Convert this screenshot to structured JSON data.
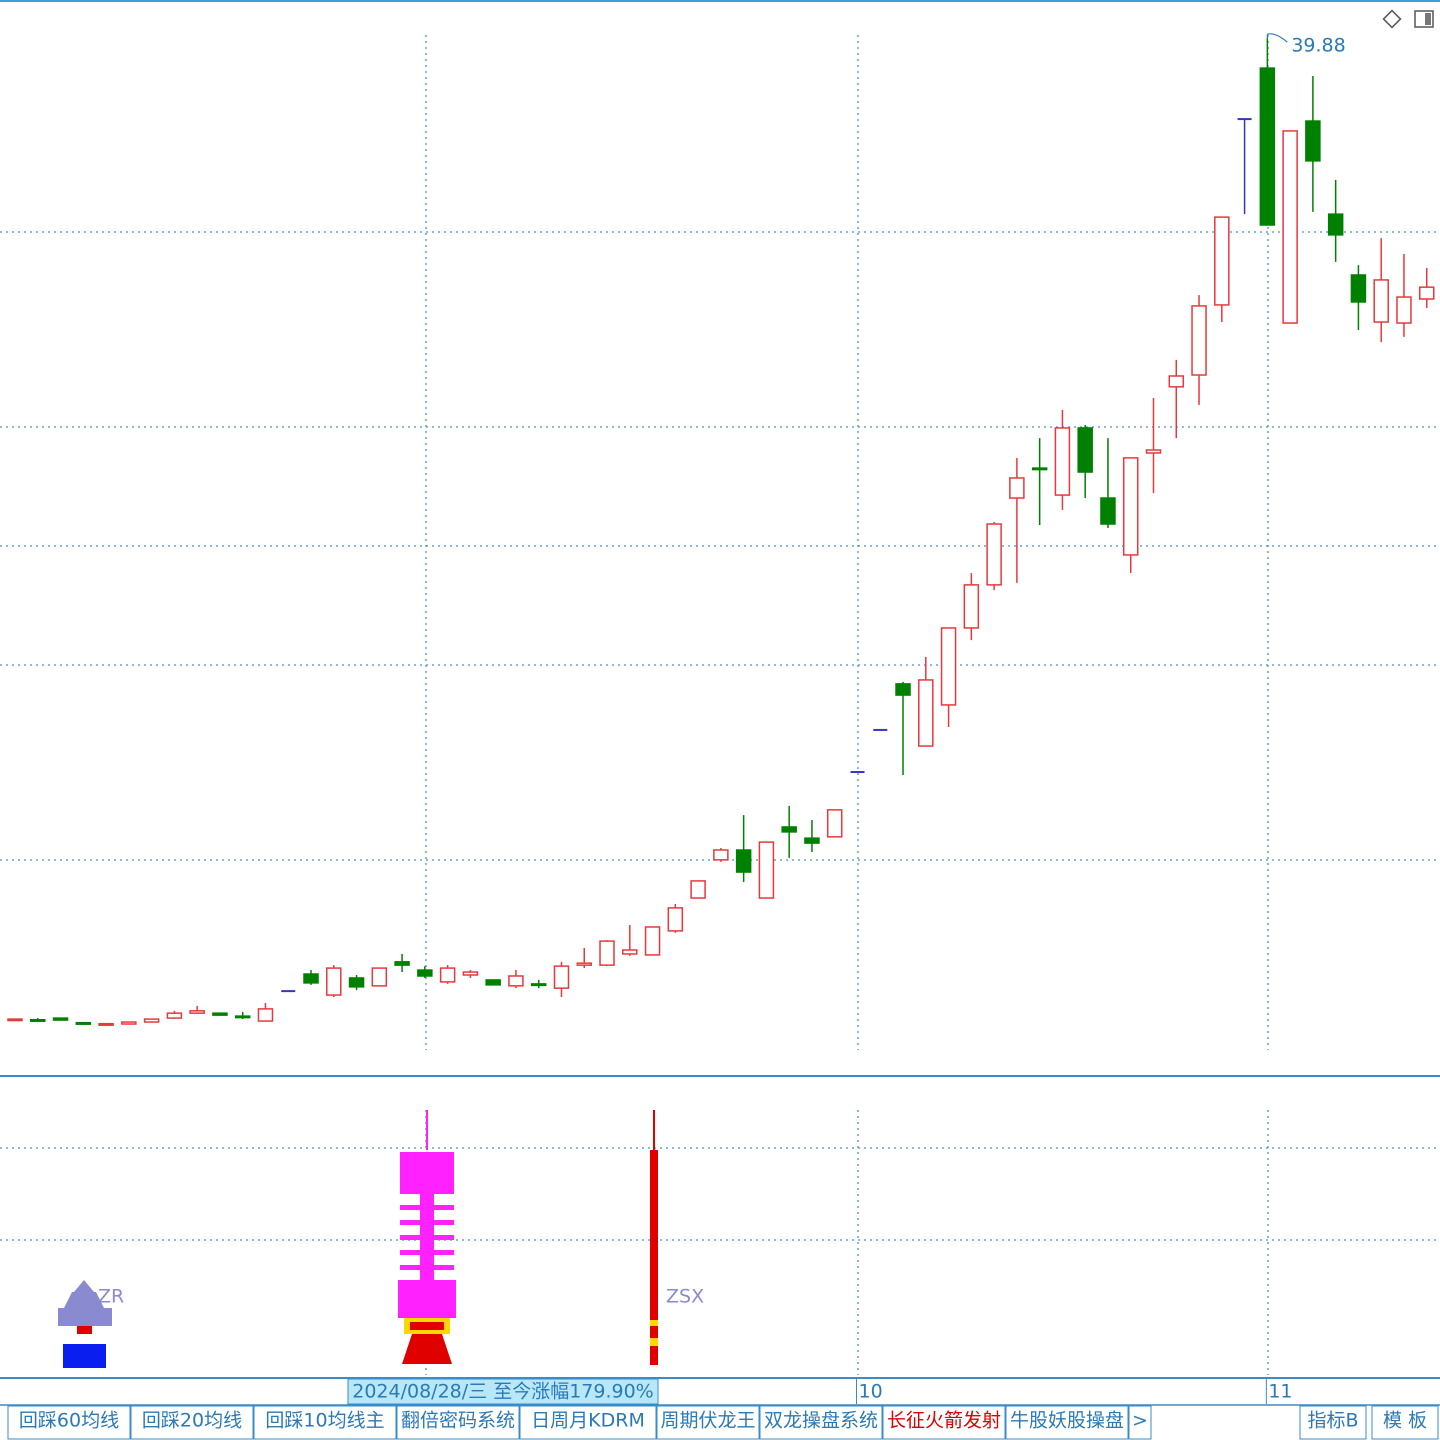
{
  "chart_data": {
    "type": "candlestick",
    "open": [
      10.05,
      10.04,
      10.09,
      9.95,
      9.91,
      9.91,
      9.97,
      10.09,
      10.24,
      10.24,
      10.15,
      10.0,
      10.91,
      11.43,
      10.79,
      11.31,
      11.07,
      11.8,
      11.55,
      11.19,
      11.4,
      11.25,
      11.07,
      11.13,
      11.0,
      11.7,
      11.7,
      12.04,
      12.01,
      12.74,
      13.74,
      14.9,
      15.2,
      13.74,
      15.9,
      15.56,
      15.6,
      17.57,
      18.85,
      20.25,
      18.36,
      19.61,
      21.95,
      23.26,
      25.9,
      26.81,
      25.99,
      28.03,
      25.9,
      24.17,
      27.27,
      29.28,
      29.64,
      31.77,
      37.42,
      38.97,
      31.22,
      37.36,
      34.53,
      32.68,
      31.25,
      31.22,
      31.95
    ],
    "close": [
      10.06,
      10.03,
      10.03,
      9.94,
      9.92,
      9.97,
      10.06,
      10.24,
      10.31,
      10.18,
      10.14,
      10.37,
      10.91,
      11.16,
      11.61,
      11.04,
      11.61,
      11.7,
      11.37,
      11.61,
      11.49,
      11.1,
      11.37,
      11.12,
      11.67,
      11.76,
      12.43,
      12.16,
      12.86,
      13.44,
      14.26,
      15.2,
      14.53,
      15.44,
      15.75,
      15.41,
      16.42,
      17.57,
      18.85,
      19.91,
      20.37,
      21.95,
      23.26,
      25.11,
      26.51,
      26.8,
      28.03,
      26.69,
      25.11,
      27.12,
      27.36,
      29.61,
      31.74,
      34.44,
      37.42,
      34.2,
      37.06,
      36.15,
      33.9,
      31.86,
      32.53,
      32.01,
      32.31
    ],
    "high": [
      10.06,
      10.09,
      10.09,
      9.95,
      9.92,
      9.97,
      10.06,
      10.31,
      10.46,
      10.24,
      10.28,
      10.55,
      10.91,
      11.55,
      11.7,
      11.4,
      11.61,
      12.04,
      11.67,
      11.7,
      11.55,
      11.25,
      11.55,
      11.25,
      11.8,
      12.22,
      12.46,
      12.92,
      12.86,
      13.56,
      14.26,
      15.26,
      16.26,
      15.44,
      16.54,
      16.11,
      16.42,
      17.57,
      18.85,
      20.31,
      21.07,
      21.95,
      23.62,
      25.17,
      27.12,
      27.72,
      28.58,
      28.12,
      27.72,
      27.12,
      28.94,
      30.1,
      32.07,
      34.44,
      37.42,
      39.88,
      37.06,
      38.73,
      35.57,
      32.98,
      33.8,
      33.32,
      32.89
    ],
    "low": [
      10.05,
      9.97,
      10.03,
      9.94,
      9.91,
      9.91,
      9.97,
      10.09,
      10.24,
      10.18,
      10.06,
      10.0,
      10.91,
      11.1,
      10.73,
      10.94,
      11.07,
      11.49,
      11.31,
      11.13,
      11.31,
      11.1,
      11.0,
      11.0,
      10.73,
      11.61,
      11.67,
      11.98,
      12.01,
      12.68,
      13.74,
      14.84,
      14.23,
      13.74,
      14.96,
      15.14,
      15.6,
      17.57,
      18.85,
      17.48,
      18.36,
      18.94,
      21.58,
      23.1,
      23.32,
      25.08,
      25.54,
      25.9,
      24.99,
      23.62,
      26.05,
      27.72,
      28.73,
      31.25,
      34.53,
      34.2,
      31.22,
      34.6,
      33.08,
      31.01,
      30.64,
      30.8,
      31.68
    ],
    "categories": [
      null,
      null,
      null,
      null,
      null,
      null,
      null,
      null,
      null,
      null,
      null,
      null,
      null,
      null,
      null,
      null,
      null,
      null,
      null,
      null,
      null,
      null,
      null,
      null,
      null,
      null,
      null,
      null,
      null,
      null,
      null,
      null,
      null,
      null,
      null,
      null,
      null,
      "10",
      null,
      null,
      null,
      null,
      null,
      null,
      null,
      null,
      null,
      null,
      null,
      null,
      null,
      null,
      null,
      null,
      null,
      "11",
      null,
      null,
      null,
      null,
      null,
      null,
      null
    ],
    "up_color": "#e8383c",
    "down_color": "#008000",
    "flat_color": "#3535c8",
    "ylim": [
      8.36,
      41.04
    ]
  },
  "info_label": "2024/08/28/三  至今涨幅179.90%",
  "indicator_labels": [
    "ZR",
    "ZSX"
  ],
  "tabs": [
    "回踩60均线",
    "回踩20均线",
    "回踩10均线主",
    "翻倍密码系统",
    "日周月KDRM",
    "周期伏龙王",
    "双龙操盘系统",
    "长征火箭发射",
    "牛股妖股操盘",
    ">"
  ],
  "right_tabs": [
    "指标B",
    "模 板"
  ]
}
